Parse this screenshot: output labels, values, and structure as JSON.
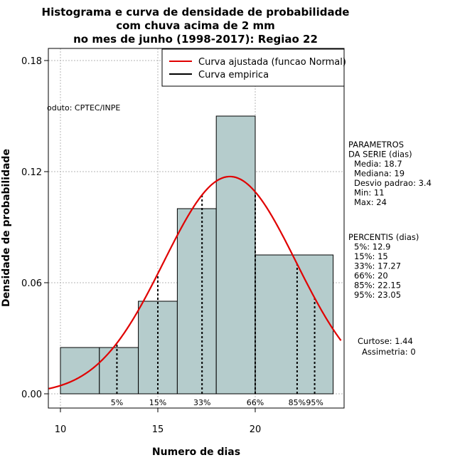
{
  "chart_data": {
    "type": "bar",
    "title_lines": [
      "Histograma e curva de densidade de probabilidade",
      "com chuva acima de 2 mm",
      "no mes de junho (1998-2017): Regiao 22"
    ],
    "xlabel": "Numero de dias",
    "ylabel": "Densidade de probabilidade",
    "xlim": [
      9.4,
      24.6
    ],
    "ylim": [
      0,
      0.18
    ],
    "x_ticks": [
      10,
      15,
      20
    ],
    "y_ticks": [
      0.0,
      0.06,
      0.12,
      0.18
    ],
    "y_tick_labels": [
      "0.00",
      "0.06",
      "0.12",
      "0.18"
    ],
    "bins": [
      {
        "x0": 10,
        "x1": 12,
        "density": 0.025
      },
      {
        "x0": 12,
        "x1": 14,
        "density": 0.025
      },
      {
        "x0": 14,
        "x1": 16,
        "density": 0.05
      },
      {
        "x0": 16,
        "x1": 18,
        "density": 0.1
      },
      {
        "x0": 18,
        "x1": 20,
        "density": 0.15
      },
      {
        "x0": 20,
        "x1": 24,
        "density": 0.075
      }
    ],
    "bar_color": "#b5cccc",
    "curve_color": "#e00000",
    "normal_fit": {
      "mean": 18.7,
      "sd": 3.4
    },
    "percentile_lines": [
      {
        "label": "5%",
        "x": 12.9
      },
      {
        "label": "15%",
        "x": 15
      },
      {
        "label": "33%",
        "x": 17.27
      },
      {
        "label": "66%",
        "x": 20
      },
      {
        "label": "85%",
        "x": 22.15
      },
      {
        "label": "95%",
        "x": 23.05
      }
    ],
    "grid": true,
    "legend": {
      "placement": "top-right",
      "entries": [
        {
          "label": "Curva ajustada (funcao Normal)",
          "color": "#e00000"
        },
        {
          "label": "Curva empirica",
          "color": "#000000"
        }
      ]
    },
    "annotation": "oduto: CPTEC/INPE",
    "parametros": {
      "heading": [
        "PARAMETROS",
        "DA SERIE (dias)"
      ],
      "lines": [
        "Media: 18.7",
        "Mediana: 19",
        "Desvio padrao: 3.4",
        "Min: 11",
        "Max: 24"
      ]
    },
    "percentis": {
      "heading": "PERCENTIS (dias)",
      "lines": [
        "5%: 12.9",
        "15%: 15",
        "33%: 17.27",
        "66%: 20",
        "85%: 22.15",
        "95%: 23.05"
      ]
    },
    "stats": [
      "Curtose: 1.44",
      "Assimetria: 0"
    ]
  }
}
